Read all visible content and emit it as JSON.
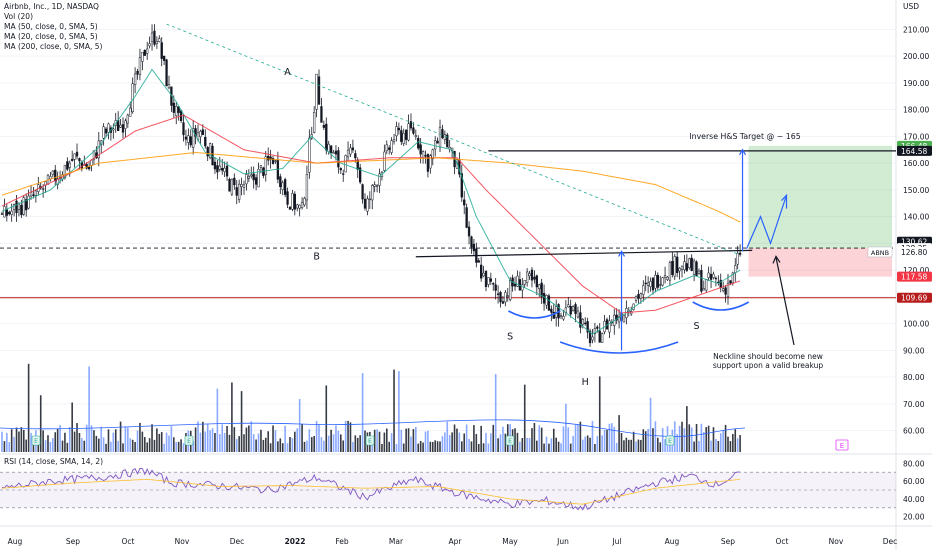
{
  "header": {
    "symbol": "Airbnb, Inc., 1D, NASDAQ",
    "vol": "Vol (20)",
    "ma50": "MA (50, close, 0, SMA, 5)",
    "ma20": "MA (20, close, 0, SMA, 5)",
    "ma200": "MA (200, close, 0, SMA, 5)",
    "rsi": "RSI (14, close, SMA, 14, 2)"
  },
  "chart_data": {
    "type": "candlestick",
    "currency": "USD",
    "price_axis": {
      "min": 52,
      "max": 221,
      "ticks": [
        60,
        70,
        80,
        90,
        100,
        110,
        120,
        130,
        140,
        150,
        160,
        170,
        180,
        190,
        200,
        210
      ]
    },
    "rsi_axis": {
      "min": 14,
      "max": 86,
      "ticks": [
        20,
        40,
        60,
        80
      ]
    },
    "x_labels": [
      "Aug",
      "Sep",
      "Oct",
      "Nov",
      "Dec",
      "2022",
      "Feb",
      "Mar",
      "Apr",
      "May",
      "Jun",
      "Jul",
      "Aug",
      "Sep",
      "Oct",
      "Nov",
      "Dec"
    ],
    "price_path": [
      [
        0,
        140
      ],
      [
        10,
        145
      ],
      [
        20,
        153
      ],
      [
        30,
        162
      ],
      [
        36,
        158
      ],
      [
        42,
        171
      ],
      [
        50,
        175
      ],
      [
        57,
        196
      ],
      [
        60,
        205
      ],
      [
        64,
        208
      ],
      [
        70,
        183
      ],
      [
        76,
        168
      ],
      [
        82,
        172
      ],
      [
        88,
        160
      ],
      [
        96,
        150
      ],
      [
        104,
        154
      ],
      [
        112,
        162
      ],
      [
        118,
        147
      ],
      [
        124,
        142
      ],
      [
        130,
        190
      ],
      [
        134,
        167
      ],
      [
        140,
        158
      ],
      [
        146,
        165
      ],
      [
        150,
        142
      ],
      [
        156,
        157
      ],
      [
        162,
        170
      ],
      [
        170,
        172
      ],
      [
        176,
        160
      ],
      [
        182,
        172
      ],
      [
        188,
        158
      ],
      [
        194,
        126
      ],
      [
        200,
        116
      ],
      [
        206,
        110
      ],
      [
        212,
        115
      ],
      [
        218,
        116
      ],
      [
        224,
        110
      ],
      [
        230,
        102
      ],
      [
        236,
        108
      ],
      [
        242,
        95
      ],
      [
        246,
        95
      ],
      [
        250,
        100
      ],
      [
        256,
        104
      ],
      [
        262,
        110
      ],
      [
        268,
        114
      ],
      [
        274,
        120
      ],
      [
        280,
        123
      ],
      [
        286,
        120
      ],
      [
        290,
        114
      ],
      [
        294,
        117
      ],
      [
        298,
        113
      ],
      [
        302,
        117
      ],
      [
        305,
        127
      ]
    ],
    "series": [
      {
        "name": "MA (20, close, 0, SMA, 5)",
        "color": "#22ab94",
        "values": [
          [
            0,
            142
          ],
          [
            20,
            150
          ],
          [
            40,
            166
          ],
          [
            55,
            185
          ],
          [
            62,
            195
          ],
          [
            72,
            183
          ],
          [
            84,
            164
          ],
          [
            100,
            156
          ],
          [
            116,
            158
          ],
          [
            128,
            170
          ],
          [
            140,
            160
          ],
          [
            156,
            155
          ],
          [
            172,
            168
          ],
          [
            186,
            165
          ],
          [
            196,
            140
          ],
          [
            210,
            116
          ],
          [
            224,
            110
          ],
          [
            236,
            102
          ],
          [
            244,
            96
          ],
          [
            258,
            104
          ],
          [
            270,
            112
          ],
          [
            286,
            118
          ],
          [
            296,
            115
          ],
          [
            305,
            120
          ]
        ]
      },
      {
        "name": "MA (50, close, 0, SMA, 5)",
        "color": "#f23645",
        "values": [
          [
            0,
            144
          ],
          [
            30,
            157
          ],
          [
            55,
            172
          ],
          [
            75,
            178
          ],
          [
            100,
            165
          ],
          [
            130,
            160
          ],
          [
            160,
            162
          ],
          [
            188,
            162
          ],
          [
            200,
            150
          ],
          [
            220,
            132
          ],
          [
            240,
            114
          ],
          [
            256,
            104
          ],
          [
            270,
            105
          ],
          [
            286,
            110
          ],
          [
            305,
            116
          ]
        ]
      },
      {
        "name": "MA (200, close, 0, SMA, 5)",
        "color": "#ff9800",
        "values": [
          [
            0,
            148
          ],
          [
            40,
            160
          ],
          [
            80,
            164
          ],
          [
            130,
            160
          ],
          [
            180,
            162
          ],
          [
            210,
            160
          ],
          [
            240,
            157
          ],
          [
            270,
            152
          ],
          [
            296,
            142
          ],
          [
            305,
            138
          ]
        ]
      }
    ],
    "volume": {
      "axis_max": 100,
      "max_index": 41,
      "median": 38
    },
    "rsi_path": [
      [
        0,
        52
      ],
      [
        20,
        60
      ],
      [
        40,
        64
      ],
      [
        60,
        72
      ],
      [
        70,
        58
      ],
      [
        90,
        55
      ],
      [
        110,
        50
      ],
      [
        130,
        64
      ],
      [
        150,
        42
      ],
      [
        170,
        62
      ],
      [
        190,
        45
      ],
      [
        210,
        34
      ],
      [
        225,
        38
      ],
      [
        240,
        30
      ],
      [
        255,
        44
      ],
      [
        270,
        58
      ],
      [
        285,
        66
      ],
      [
        295,
        56
      ],
      [
        305,
        68
      ]
    ],
    "rsi_signal_path": [
      [
        0,
        52
      ],
      [
        30,
        58
      ],
      [
        60,
        62
      ],
      [
        90,
        54
      ],
      [
        120,
        55
      ],
      [
        150,
        52
      ],
      [
        180,
        54
      ],
      [
        210,
        40
      ],
      [
        240,
        34
      ],
      [
        270,
        52
      ],
      [
        305,
        62
      ]
    ],
    "rsi_levels": {
      "upper": 70,
      "middle": 50,
      "lower": 30
    },
    "levels": [
      {
        "name": "inverse-hs-target",
        "value": 164.58,
        "color": "#131722",
        "label": "164.58"
      },
      {
        "name": "entry",
        "value": 128.25,
        "color": "#131722",
        "label": "128.25"
      },
      {
        "name": "stop",
        "value": 109.69,
        "color": "#b71c1c",
        "label": "109.69"
      }
    ],
    "price_labels": [
      {
        "value": 166.48,
        "label": "166.48",
        "bg": "#4caf50",
        "fg": "#ffffff"
      },
      {
        "value": 164.58,
        "label": "164.58",
        "bg": "#131722",
        "fg": "#ffffff"
      },
      {
        "value": 130.62,
        "label": "130.62",
        "bg": "#131722",
        "fg": "#ffffff"
      },
      {
        "value": 128.25,
        "label": "128.25",
        "bg": "#ffffff",
        "fg": "#131722"
      },
      {
        "value": 126.8,
        "label": "126.80",
        "bg": "#ffffff",
        "fg": "#131722"
      },
      {
        "value": 117.58,
        "label": "117.58",
        "bg": "#f23645",
        "fg": "#ffffff"
      },
      {
        "value": 109.69,
        "label": "109.69",
        "bg": "#b71c1c",
        "fg": "#ffffff"
      }
    ],
    "annotations": {
      "points": [
        {
          "text": "A",
          "i": 118,
          "price": 193
        },
        {
          "text": "B",
          "i": 130,
          "price": 124
        },
        {
          "text": "S",
          "i": 210,
          "price": 94
        },
        {
          "text": "H",
          "i": 241,
          "price": 77
        },
        {
          "text": "S",
          "i": 287,
          "price": 98
        }
      ],
      "target_label": "Inverse H&S Target @ ~ 165",
      "neckline_note_line1": "Neckline should become new",
      "neckline_note_line2": "support upon a valid breakup",
      "ticker_tag": "ABNB",
      "earnings_marker": "E"
    },
    "trendline": {
      "from": [
        68,
        212
      ],
      "to": [
        285,
        126
      ]
    },
    "neckline": {
      "from": [
        171,
        125
      ],
      "to": [
        284,
        127
      ]
    }
  }
}
